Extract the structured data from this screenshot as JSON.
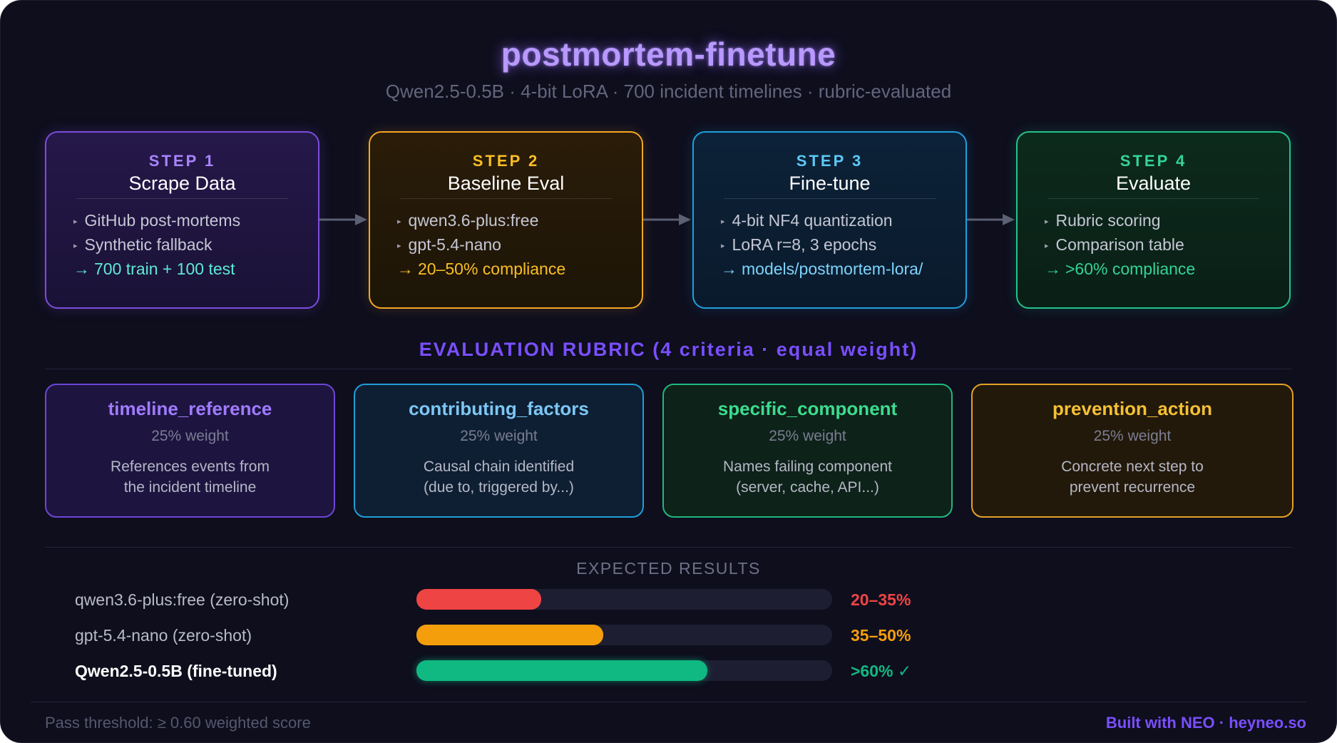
{
  "header": {
    "title": "postmortem-finetune",
    "subtitle": "Qwen2.5-0.5B · 4-bit LoRA · 700 incident timelines · rubric-evaluated"
  },
  "steps": [
    {
      "label": "STEP 1",
      "name": "Scrape Data",
      "items": [
        "GitHub post-mortems",
        "Synthetic fallback"
      ],
      "output": "700 train + 100 test",
      "accent": "#9b6bff"
    },
    {
      "label": "STEP 2",
      "name": "Baseline Eval",
      "items": [
        "qwen3.6-plus:free",
        "gpt-5.4-nano"
      ],
      "output": "20–50% compliance",
      "accent": "#f5b52a"
    },
    {
      "label": "STEP 3",
      "name": "Fine-tune",
      "items": [
        "4-bit NF4 quantization",
        "LoRA r=8, 3 epochs"
      ],
      "output": "models/postmortem-lora/",
      "accent": "#38bdf8"
    },
    {
      "label": "STEP 4",
      "name": "Evaluate",
      "items": [
        "Rubric scoring",
        "Comparison table"
      ],
      "output": ">60% compliance",
      "accent": "#34d399"
    }
  ],
  "rubric": {
    "title": "EVALUATION RUBRIC (4 criteria · equal weight)",
    "criteria": [
      {
        "name": "timeline_reference",
        "weight": "25% weight",
        "desc_line1": "References events from",
        "desc_line2": "the incident timeline",
        "accent": "#a07bff"
      },
      {
        "name": "contributing_factors",
        "weight": "25% weight",
        "desc_line1": "Causal chain identified",
        "desc_line2": "(due to, triggered by...)",
        "accent": "#7cc7f5"
      },
      {
        "name": "specific_component",
        "weight": "25% weight",
        "desc_line1": "Names failing component",
        "desc_line2": "(server, cache, API...)",
        "accent": "#3ddc8f"
      },
      {
        "name": "prevention_action",
        "weight": "25% weight",
        "desc_line1": "Concrete next step to",
        "desc_line2": "prevent recurrence",
        "accent": "#f5c033"
      }
    ]
  },
  "results": {
    "title": "EXPECTED RESULTS",
    "rows": [
      {
        "label": "qwen3.6-plus:free (zero-shot)",
        "value": "20–35%",
        "fill_fraction": 0.3,
        "color": "#ef4444",
        "strong": false
      },
      {
        "label": "gpt-5.4-nano (zero-shot)",
        "value": "35–50%",
        "fill_fraction": 0.45,
        "color": "#f59e0b",
        "strong": false
      },
      {
        "label": "Qwen2.5-0.5B (fine-tuned)",
        "value": ">60% ✓",
        "fill_fraction": 0.7,
        "color": "#10b981",
        "strong": true
      }
    ]
  },
  "footer": {
    "left": "Pass threshold: ≥ 0.60 weighted score",
    "right": "Built with NEO · heyneo.so"
  }
}
